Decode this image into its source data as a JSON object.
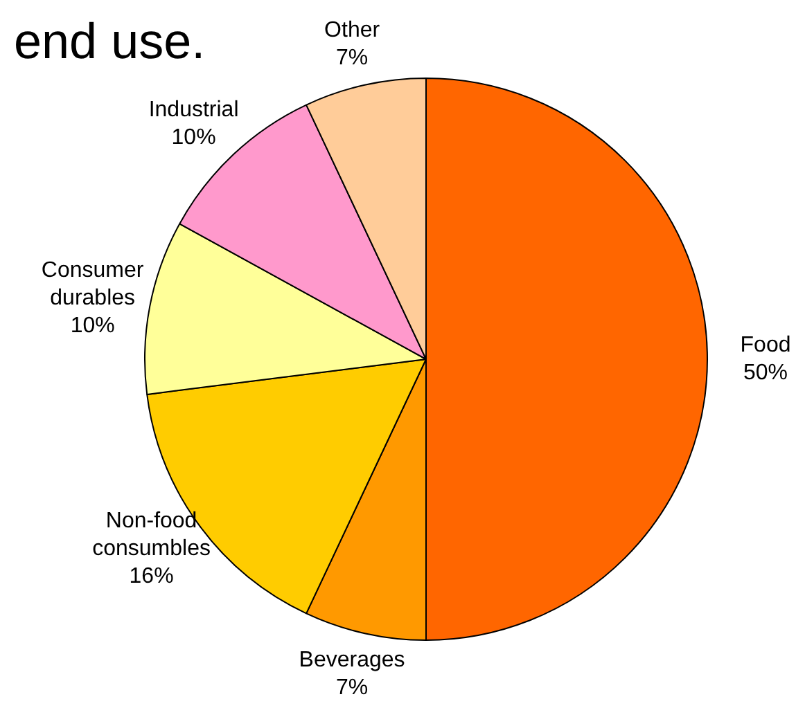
{
  "chart_data": {
    "type": "pie",
    "title": "end use.",
    "categories": [
      "Food",
      "Beverages",
      "Non-food consumbles",
      "Consumer durables",
      "Industrial",
      "Other"
    ],
    "values": [
      50,
      7,
      16,
      10,
      10,
      7
    ],
    "value_labels": [
      "50%",
      "7%",
      "16%",
      "10%",
      "10%",
      "7%"
    ],
    "colors": [
      "#ff6600",
      "#ff9900",
      "#ffcc00",
      "#ffff99",
      "#ff99cc",
      "#ffcc99"
    ],
    "legend": false
  }
}
